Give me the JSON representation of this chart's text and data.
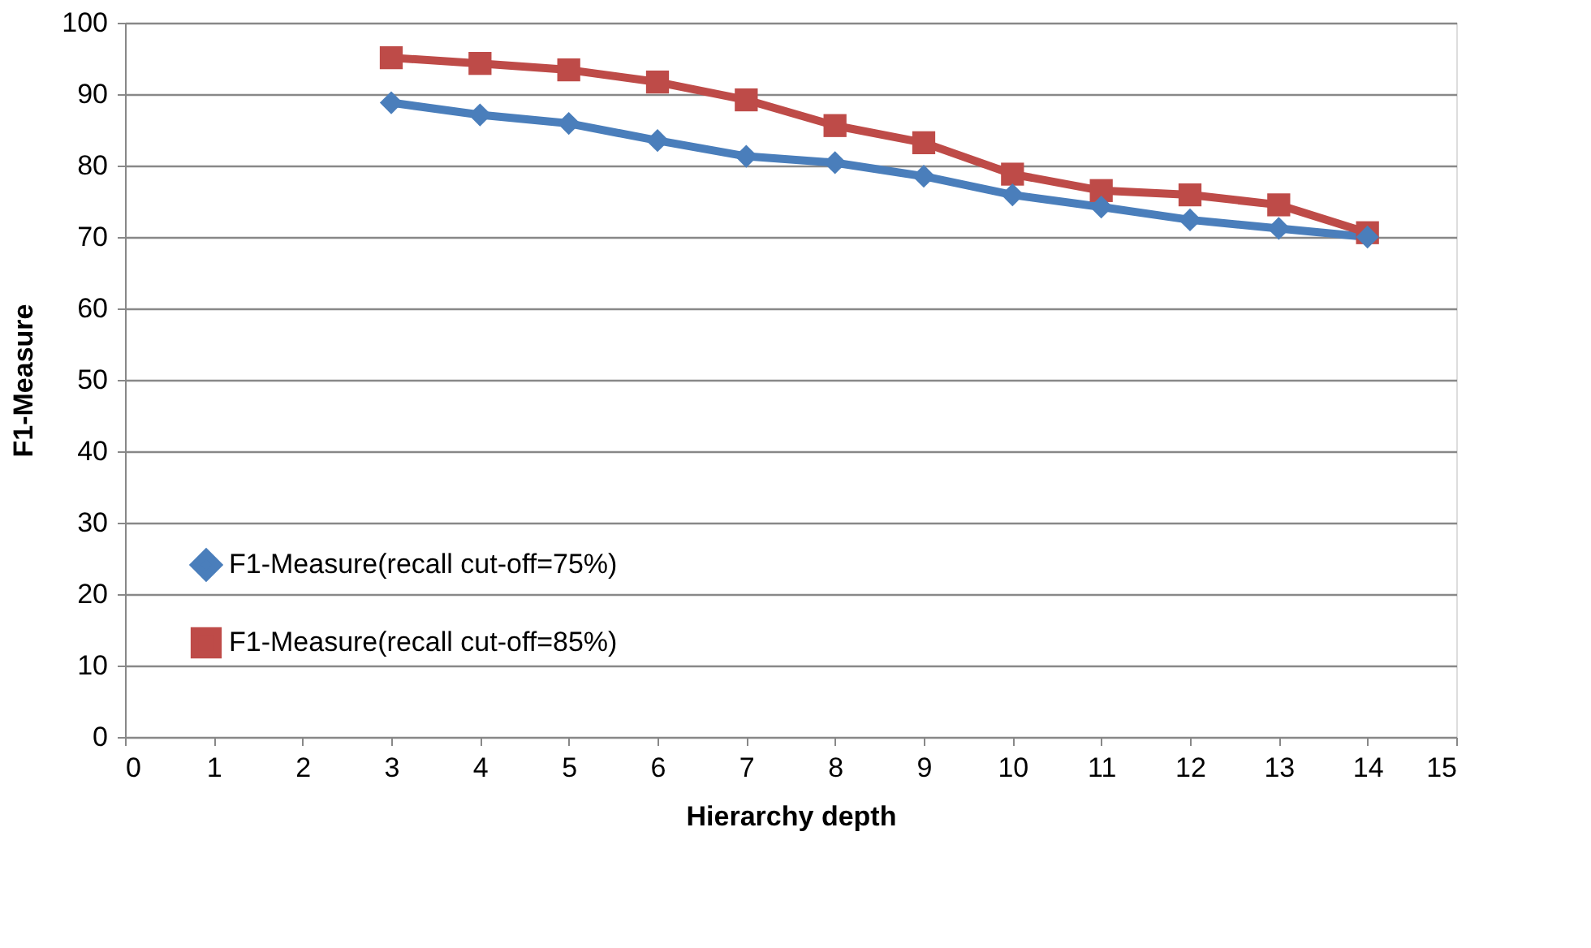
{
  "chart_data": {
    "type": "line",
    "xlabel": "Hierarchy depth",
    "ylabel": "F1-Measure",
    "xlim": [
      0,
      15
    ],
    "xticks": [
      0,
      1,
      2,
      3,
      4,
      5,
      6,
      7,
      8,
      9,
      10,
      11,
      12,
      13,
      14,
      15
    ],
    "ylim": [
      0,
      100
    ],
    "yticks": [
      0,
      10,
      20,
      30,
      40,
      50,
      60,
      70,
      80,
      90,
      100
    ],
    "grid": "y",
    "legend": "bottom left",
    "series": [
      {
        "name": "F1-Measure(recall cut-off=75%)",
        "color": "#4a7ebb",
        "marker": "diamond",
        "x": [
          3,
          4,
          5,
          6,
          7,
          8,
          9,
          10,
          11,
          12,
          13,
          14
        ],
        "values": [
          88.8,
          87.1,
          85.9,
          83.5,
          81.3,
          80.4,
          78.5,
          75.9,
          74.2,
          72.4,
          71.2,
          70.0
        ]
      },
      {
        "name": "F1-Measure(recall cut-off=85%)",
        "color": "#be4b48",
        "marker": "square",
        "x": [
          3,
          4,
          5,
          6,
          7,
          8,
          9,
          10,
          11,
          12,
          13,
          14
        ],
        "values": [
          95.1,
          94.3,
          93.4,
          91.7,
          89.2,
          85.6,
          83.2,
          78.8,
          76.5,
          75.9,
          74.5,
          70.6
        ]
      }
    ]
  }
}
